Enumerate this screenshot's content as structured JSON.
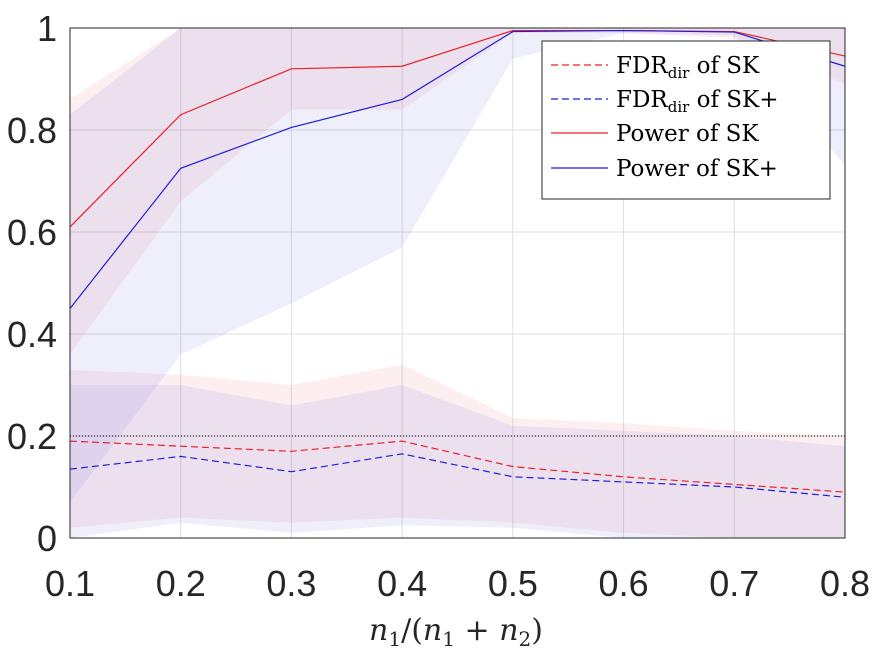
{
  "chart_data": {
    "type": "line",
    "xlabel": "n₁/(n₁ + n₂)",
    "xlabel_parts": {
      "n": "n",
      "s1": "1",
      "s2": "2",
      "open": "/(",
      "plus": " + ",
      "close": ")"
    },
    "x": [
      0.1,
      0.2,
      0.3,
      0.4,
      0.5,
      0.6,
      0.7,
      0.8
    ],
    "xlim": [
      0.1,
      0.8
    ],
    "ylim": [
      0,
      1
    ],
    "xticks": [
      "0.1",
      "0.2",
      "0.3",
      "0.4",
      "0.5",
      "0.6",
      "0.7",
      "0.8"
    ],
    "yticks": [
      "0",
      "0.2",
      "0.4",
      "0.6",
      "0.8",
      "1"
    ],
    "grid": true,
    "legend_position": "top-right",
    "reference_line": {
      "y": 0.2,
      "style": "dotted",
      "color": "#000000"
    },
    "series": [
      {
        "name": "FDR_dir of SK",
        "legend_main": "FDR",
        "legend_sub": "dir",
        "legend_rest": " of SK",
        "color": "#e8202a",
        "style": "dashed",
        "values": [
          0.19,
          0.18,
          0.17,
          0.19,
          0.14,
          0.12,
          0.105,
          0.09
        ],
        "band_upper": [
          0.33,
          0.32,
          0.3,
          0.34,
          0.235,
          0.225,
          0.21,
          0.2
        ],
        "band_lower": [
          0.02,
          0.04,
          0.03,
          0.04,
          0.03,
          0.01,
          0.0,
          0.0
        ]
      },
      {
        "name": "FDR_dir of SK+",
        "legend_main": "FDR",
        "legend_sub": "dir",
        "legend_rest": " of SK+",
        "color": "#1f1fd6",
        "style": "dashed",
        "values": [
          0.135,
          0.16,
          0.13,
          0.165,
          0.12,
          0.11,
          0.1,
          0.08
        ],
        "band_upper": [
          0.3,
          0.3,
          0.26,
          0.3,
          0.22,
          0.21,
          0.2,
          0.18
        ],
        "band_lower": [
          0.0,
          0.03,
          0.01,
          0.025,
          0.02,
          0.0,
          0.0,
          0.0
        ]
      },
      {
        "name": "Power of SK",
        "legend_main": "Power of SK",
        "color": "#e8202a",
        "style": "solid",
        "values": [
          0.61,
          0.83,
          0.92,
          0.925,
          0.995,
          0.995,
          0.993,
          0.945
        ],
        "band_upper": [
          0.86,
          1.0,
          1.0,
          1.0,
          1.0,
          1.0,
          1.0,
          1.0
        ],
        "band_lower": [
          0.36,
          0.66,
          0.84,
          0.84,
          0.99,
          0.99,
          0.98,
          0.89
        ]
      },
      {
        "name": "Power of SK+",
        "legend_main": "Power of SK+",
        "color": "#1f1fd6",
        "style": "solid",
        "values": [
          0.45,
          0.725,
          0.805,
          0.86,
          0.993,
          0.995,
          0.992,
          0.925
        ],
        "band_upper": [
          0.83,
          1.0,
          1.0,
          1.0,
          1.0,
          1.0,
          1.0,
          1.0
        ],
        "band_lower": [
          0.07,
          0.36,
          0.46,
          0.57,
          0.94,
          0.99,
          0.985,
          0.73
        ]
      }
    ]
  }
}
